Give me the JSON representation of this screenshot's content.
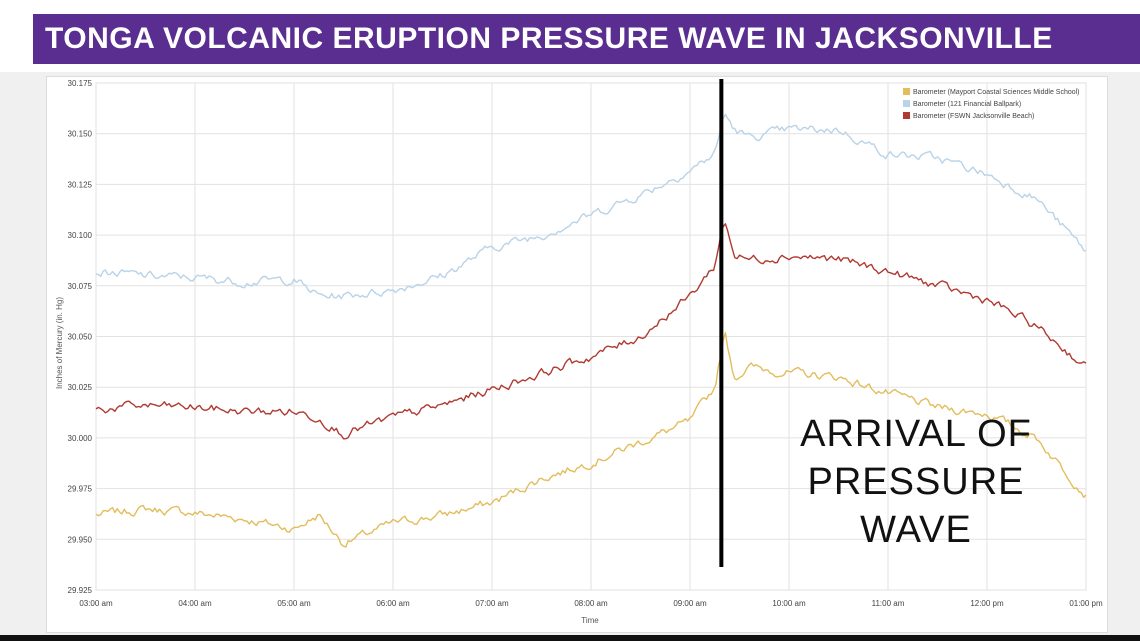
{
  "banner": {
    "title": "TONGA VOLCANIC ERUPTION PRESSURE WAVE IN JACKSONVILLE"
  },
  "annotation": {
    "line1": "ARRIVAL OF",
    "line2": "PRESSURE WAVE"
  },
  "colors": {
    "banner": "#5a2d91",
    "mayport": "#e2bd5c",
    "financial": "#b9d3e8",
    "fswn": "#b03a32",
    "arrival_line": "#000000"
  },
  "chart_data": {
    "type": "line",
    "title": "",
    "xlabel": "Time",
    "ylabel": "Inches of Mercury (in. Hg)",
    "xlim": [
      "03:00 am",
      "01:00 pm"
    ],
    "ylim": [
      29.925,
      30.175
    ],
    "x_ticks": [
      "03:00 am",
      "04:00 am",
      "05:00 am",
      "06:00 am",
      "07:00 am",
      "08:00 am",
      "09:00 am",
      "10:00 am",
      "11:00 am",
      "12:00 pm",
      "01:00 pm"
    ],
    "y_ticks": [
      "30.175",
      "30.150",
      "30.125",
      "30.100",
      "30.075",
      "30.050",
      "30.025",
      "30.000",
      "29.975",
      "29.950",
      "29.925"
    ],
    "grid": true,
    "legend_position": "top-right",
    "arrival_time": "09:19 am",
    "x_hours": [
      3.0,
      3.5,
      4.0,
      4.5,
      5.0,
      5.25,
      5.5,
      6.0,
      6.5,
      7.0,
      7.5,
      8.0,
      8.5,
      9.0,
      9.25,
      9.35,
      9.45,
      9.6,
      10.0,
      10.5,
      11.0,
      11.5,
      12.0,
      12.5,
      13.0
    ],
    "series": [
      {
        "name": "Barometer (Mayport Coastal Sciences Middle School)",
        "color": "#e2bd5c",
        "values": [
          29.962,
          29.965,
          29.963,
          29.96,
          29.955,
          29.962,
          29.948,
          29.958,
          29.962,
          29.968,
          29.98,
          29.988,
          29.998,
          30.008,
          30.025,
          30.052,
          30.03,
          30.035,
          30.032,
          30.03,
          30.022,
          30.015,
          30.012,
          30.0,
          29.972
        ]
      },
      {
        "name": "Barometer (121 Financial Ballpark)",
        "color": "#b9d3e8",
        "values": [
          30.082,
          30.08,
          30.079,
          30.077,
          30.078,
          30.07,
          30.07,
          30.073,
          30.08,
          30.094,
          30.1,
          30.11,
          30.12,
          30.132,
          30.14,
          30.16,
          30.152,
          30.148,
          30.152,
          30.152,
          30.14,
          30.138,
          30.13,
          30.118,
          30.092
        ]
      },
      {
        "name": "Barometer (FSWN Jacksonville Beach)",
        "color": "#b03a32",
        "values": [
          30.014,
          30.016,
          30.015,
          30.013,
          30.013,
          30.01,
          30.002,
          30.01,
          30.016,
          30.024,
          30.032,
          30.04,
          30.05,
          30.07,
          30.085,
          30.108,
          30.09,
          30.088,
          30.09,
          30.088,
          30.082,
          30.075,
          30.068,
          30.055,
          30.035
        ]
      }
    ]
  }
}
